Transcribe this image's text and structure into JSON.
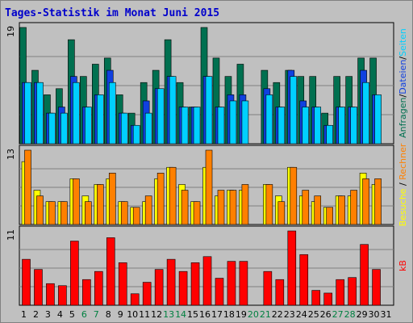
{
  "title": "Tages-Statistik im Monat Juni 2015",
  "colors": {
    "frame": "#808080",
    "plot_bg": "#c0c0c0",
    "grid": "#808080",
    "title": "#0000cc",
    "weekday": "#000000",
    "weekend": "#008040",
    "visits": "#007050",
    "files": "#1040e0",
    "pages": "#00d0ff",
    "hits": "#ff8000",
    "sites": "#ffff00",
    "kbytes": "#ff0000"
  },
  "chart_data": [
    {
      "type": "bar",
      "name": "upper",
      "ymax_label": "19",
      "legend": [
        {
          "text": "Anfragen",
          "key": "visits"
        },
        {
          "text": "/",
          "key": "slash"
        },
        {
          "text": "Dateien",
          "key": "files"
        },
        {
          "text": "/",
          "key": "slash"
        },
        {
          "text": "Seiten",
          "key": "pages"
        }
      ],
      "ymax": 19,
      "categories": [
        "1",
        "2",
        "3",
        "4",
        "5",
        "6",
        "7",
        "8",
        "9",
        "10",
        "11",
        "12",
        "13",
        "14",
        "15",
        "16",
        "17",
        "18",
        "19",
        "20",
        "21",
        "22",
        "23",
        "24",
        "25",
        "26",
        "27",
        "28",
        "29",
        "30",
        "31"
      ],
      "series": [
        {
          "key": "visits",
          "values": [
            19,
            12,
            8,
            9,
            17,
            11,
            13,
            14,
            8,
            5,
            10,
            12,
            17,
            10,
            6,
            19,
            14,
            11,
            13,
            0,
            12,
            10,
            12,
            11,
            11,
            5,
            11,
            11,
            14,
            14,
            0
          ]
        },
        {
          "key": "files",
          "values": [
            10,
            10,
            5,
            6,
            11,
            6,
            8,
            12,
            5,
            3,
            7,
            9,
            11,
            6,
            6,
            11,
            6,
            8,
            8,
            0,
            9,
            6,
            12,
            7,
            6,
            3,
            6,
            6,
            12,
            8,
            0
          ]
        },
        {
          "key": "pages",
          "values": [
            10,
            10,
            5,
            5,
            10,
            6,
            8,
            10,
            5,
            3,
            5,
            9,
            11,
            6,
            6,
            11,
            6,
            7,
            7,
            0,
            8,
            6,
            11,
            6,
            6,
            3,
            6,
            6,
            10,
            8,
            0
          ]
        }
      ]
    },
    {
      "type": "bar",
      "name": "middle",
      "ymax_label": "13",
      "legend": [
        {
          "text": "Besuche",
          "key": "sites"
        },
        {
          "text": " / ",
          "key": "slash"
        },
        {
          "text": "Rechner",
          "key": "hits"
        }
      ],
      "ymax": 13,
      "categories": [
        "1",
        "2",
        "3",
        "4",
        "5",
        "6",
        "7",
        "8",
        "9",
        "10",
        "11",
        "12",
        "13",
        "14",
        "15",
        "16",
        "17",
        "18",
        "19",
        "20",
        "21",
        "22",
        "23",
        "24",
        "25",
        "26",
        "27",
        "28",
        "29",
        "30",
        "31"
      ],
      "series": [
        {
          "key": "sites",
          "values": [
            11,
            6,
            4,
            4,
            8,
            5,
            7,
            8,
            4,
            3,
            4,
            8,
            10,
            7,
            4,
            10,
            5,
            6,
            6,
            0,
            7,
            5,
            10,
            5,
            4,
            3,
            5,
            5,
            9,
            7,
            0
          ]
        },
        {
          "key": "hits",
          "values": [
            13,
            5,
            4,
            4,
            8,
            4,
            7,
            9,
            4,
            3,
            5,
            9,
            10,
            6,
            4,
            13,
            6,
            6,
            7,
            0,
            7,
            4,
            10,
            6,
            5,
            3,
            5,
            6,
            8,
            8,
            0
          ]
        }
      ]
    },
    {
      "type": "bar",
      "name": "lower",
      "ymax_label": "11",
      "legend": [
        {
          "text": "kB",
          "key": "kbytes"
        }
      ],
      "ymax": 11,
      "categories": [
        "1",
        "2",
        "3",
        "4",
        "5",
        "6",
        "7",
        "8",
        "9",
        "10",
        "11",
        "12",
        "13",
        "14",
        "15",
        "16",
        "17",
        "18",
        "19",
        "20",
        "21",
        "22",
        "23",
        "24",
        "25",
        "26",
        "27",
        "28",
        "29",
        "30",
        "31"
      ],
      "series": [
        {
          "key": "kbytes",
          "values": [
            6.8,
            5.3,
            3.2,
            2.9,
            9.5,
            3.8,
            5.0,
            10.0,
            6.3,
            1.7,
            3.4,
            5.3,
            6.8,
            5.0,
            6.3,
            7.2,
            4.0,
            6.5,
            6.5,
            0,
            5.0,
            3.8,
            11.0,
            7.5,
            2.2,
            1.8,
            3.8,
            4.1,
            9.0,
            5.3,
            0
          ]
        }
      ]
    }
  ],
  "days": [
    {
      "label": "1",
      "weekend": false
    },
    {
      "label": "2",
      "weekend": false
    },
    {
      "label": "3",
      "weekend": false
    },
    {
      "label": "4",
      "weekend": false
    },
    {
      "label": "5",
      "weekend": false
    },
    {
      "label": "6",
      "weekend": true
    },
    {
      "label": "7",
      "weekend": true
    },
    {
      "label": "8",
      "weekend": false
    },
    {
      "label": "9",
      "weekend": false
    },
    {
      "label": "10",
      "weekend": false
    },
    {
      "label": "11",
      "weekend": false
    },
    {
      "label": "12",
      "weekend": false
    },
    {
      "label": "13",
      "weekend": true
    },
    {
      "label": "14",
      "weekend": true
    },
    {
      "label": "15",
      "weekend": false
    },
    {
      "label": "16",
      "weekend": false
    },
    {
      "label": "17",
      "weekend": false
    },
    {
      "label": "18",
      "weekend": false
    },
    {
      "label": "19",
      "weekend": false
    },
    {
      "label": "20",
      "weekend": true
    },
    {
      "label": "21",
      "weekend": true
    },
    {
      "label": "22",
      "weekend": false
    },
    {
      "label": "23",
      "weekend": false
    },
    {
      "label": "24",
      "weekend": false
    },
    {
      "label": "25",
      "weekend": false
    },
    {
      "label": "26",
      "weekend": false
    },
    {
      "label": "27",
      "weekend": true
    },
    {
      "label": "28",
      "weekend": true
    },
    {
      "label": "29",
      "weekend": false
    },
    {
      "label": "30",
      "weekend": false
    },
    {
      "label": "31",
      "weekend": false
    }
  ]
}
